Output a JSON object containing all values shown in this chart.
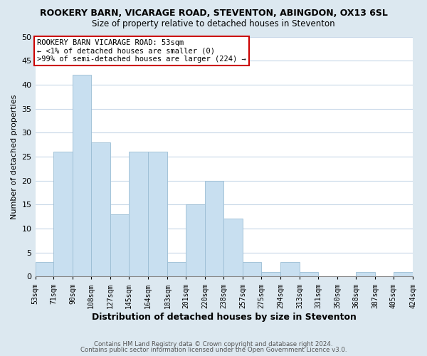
{
  "title": "ROOKERY BARN, VICARAGE ROAD, STEVENTON, ABINGDON, OX13 6SL",
  "subtitle": "Size of property relative to detached houses in Steventon",
  "xlabel": "Distribution of detached houses by size in Steventon",
  "ylabel": "Number of detached properties",
  "bar_color": "#c8dff0",
  "bar_edge_color": "#9bbdd4",
  "bins": [
    53,
    71,
    90,
    108,
    127,
    145,
    164,
    183,
    201,
    220,
    238,
    257,
    275,
    294,
    313,
    331,
    350,
    368,
    387,
    405,
    424
  ],
  "counts": [
    3,
    26,
    42,
    28,
    13,
    26,
    26,
    3,
    15,
    20,
    12,
    3,
    1,
    3,
    1,
    0,
    0,
    1,
    0,
    1
  ],
  "bin_labels": [
    "53sqm",
    "71sqm",
    "90sqm",
    "108sqm",
    "127sqm",
    "145sqm",
    "164sqm",
    "183sqm",
    "201sqm",
    "220sqm",
    "238sqm",
    "257sqm",
    "275sqm",
    "294sqm",
    "313sqm",
    "331sqm",
    "350sqm",
    "368sqm",
    "387sqm",
    "405sqm",
    "424sqm"
  ],
  "annotation_title": "ROOKERY BARN VICARAGE ROAD: 53sqm",
  "annotation_line1": "← <1% of detached houses are smaller (0)",
  "annotation_line2": ">99% of semi-detached houses are larger (224) →",
  "annotation_box_color": "#ffffff",
  "annotation_box_edge_color": "#cc0000",
  "ylim": [
    0,
    50
  ],
  "yticks": [
    0,
    5,
    10,
    15,
    20,
    25,
    30,
    35,
    40,
    45,
    50
  ],
  "footer1": "Contains HM Land Registry data © Crown copyright and database right 2024.",
  "footer2": "Contains public sector information licensed under the Open Government Licence v3.0.",
  "background_color": "#dce8f0",
  "plot_background_color": "#ffffff",
  "grid_color": "#c8d8e8"
}
